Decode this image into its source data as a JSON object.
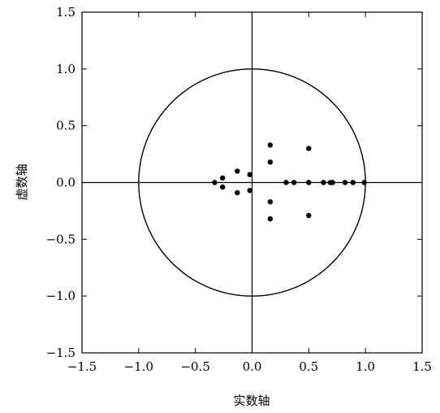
{
  "chart_data": {
    "type": "scatter",
    "title": "",
    "xlabel": "实数轴",
    "ylabel": "虚数轴",
    "xlim": [
      -1.5,
      1.5
    ],
    "ylim": [
      -1.5,
      1.5
    ],
    "xticks": [
      "−1.5",
      "−1.0",
      "−0.5",
      "0.0",
      "0.5",
      "1.0",
      "1.5"
    ],
    "yticks": [
      "1.5",
      "1.0",
      "0.5",
      "0.0",
      "−0.5",
      "−1.0",
      "−1.5"
    ],
    "xtick_values": [
      -1.5,
      -1.0,
      -0.5,
      0.0,
      0.5,
      1.0,
      1.5
    ],
    "ytick_values": [
      1.5,
      1.0,
      0.5,
      0.0,
      -0.5,
      -1.0,
      -1.5
    ],
    "grid": false,
    "unit_circle": true,
    "axes_through_origin": true,
    "series": [
      {
        "x": [
          -0.33,
          -0.26,
          -0.26,
          -0.13,
          -0.13,
          -0.02,
          -0.02,
          0.16,
          0.16,
          0.16,
          0.16,
          0.5,
          0.5,
          0.3,
          0.37,
          0.5,
          0.63,
          0.69,
          0.71,
          0.82,
          0.89,
          0.99
        ],
        "y": [
          0.0,
          0.04,
          -0.04,
          0.1,
          -0.09,
          0.07,
          -0.07,
          0.33,
          -0.32,
          0.18,
          -0.17,
          0.3,
          -0.29,
          0.0,
          0.0,
          0.0,
          0.0,
          0.0,
          0.0,
          0.0,
          0.0,
          0.0
        ]
      }
    ],
    "colors": {
      "ink": "#000000",
      "background": "#ffffff"
    }
  }
}
